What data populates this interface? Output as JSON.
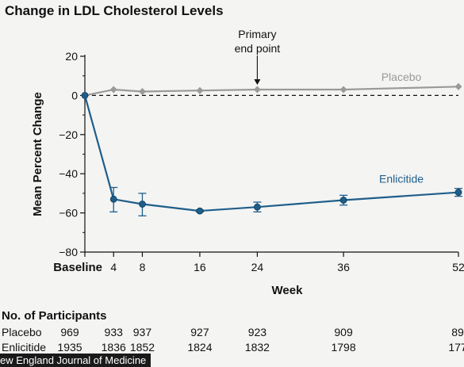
{
  "chart_data": {
    "type": "line",
    "title": "Change in LDL Cholesterol Levels",
    "xlabel": "Week",
    "ylabel": "Mean Percent Change",
    "x": [
      0,
      4,
      8,
      16,
      24,
      36,
      52
    ],
    "x_tick_labels": [
      "Baseline",
      "4",
      "8",
      "16",
      "24",
      "36",
      "52"
    ],
    "ylim": [
      -80,
      20
    ],
    "y_ticks": [
      20,
      0,
      -20,
      -40,
      -60,
      -80
    ],
    "y_tick_labels": [
      "20",
      "0",
      "−20",
      "−40",
      "−60",
      "−80"
    ],
    "reference_line": 0,
    "annotation": {
      "lines": [
        "Primary",
        "end point"
      ],
      "x": 24
    },
    "series": [
      {
        "name": "Placebo",
        "color": "#9a9a9a",
        "marker": "diamond",
        "values": [
          0,
          3,
          2,
          2.5,
          3,
          3,
          4.5
        ]
      },
      {
        "name": "Enlicitide",
        "color": "#1f5e8a",
        "marker": "circle",
        "values": [
          0,
          -53,
          -55.5,
          -59,
          -57,
          -53.5,
          -49.5
        ],
        "error_low": [
          0,
          -59.5,
          -61.5,
          -59.5,
          -59.5,
          -56,
          -51.5
        ],
        "error_high": [
          0,
          -47,
          -50,
          -58.5,
          -54.5,
          -51,
          -47.5
        ]
      }
    ]
  },
  "participants": {
    "title": "No. of Participants",
    "rows": [
      {
        "label": "Placebo",
        "values": [
          "969",
          "933",
          "937",
          "927",
          "923",
          "909",
          "89"
        ]
      },
      {
        "label": "Enlicitide",
        "values": [
          "1935",
          "1836",
          "1852",
          "1824",
          "1832",
          "1798",
          "177"
        ]
      }
    ]
  },
  "footer": {
    "text": "ew England Journal of Medicine"
  }
}
